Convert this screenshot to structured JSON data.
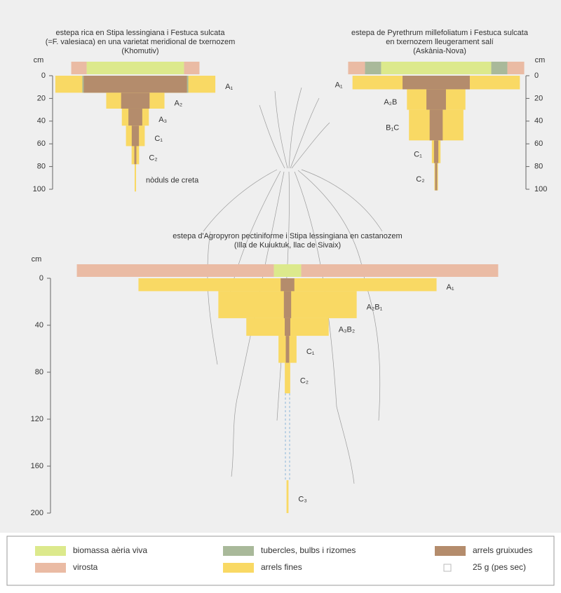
{
  "legend": {
    "live": {
      "label": "biomassa aèria viva",
      "color": "#dce98c"
    },
    "dead": {
      "label": "virosta",
      "color": "#eabba4"
    },
    "tubers": {
      "label": "tubercles, bulbs i rizomes",
      "color": "#a9b99a"
    },
    "fine": {
      "label": "arrels fines",
      "color": "#f9d964"
    },
    "thick": {
      "label": "arrels gruixudes",
      "color": "#b48c6c"
    },
    "scale": {
      "label": "25 g (pes sec)",
      "grams": 25
    }
  },
  "panels": [
    {
      "title": [
        "estepa rica en Stipa lessingiana i Festuca sulcata",
        "(=F. valesiaca) en una varietat meridional de txernozem",
        "(Khomutiv)"
      ],
      "axis_label": "cm",
      "ylim": [
        0,
        100
      ],
      "yticks": [
        0,
        20,
        40,
        60,
        80,
        100
      ],
      "aerial": {
        "live": 625,
        "dead": 198
      },
      "layers": [
        {
          "label": "A₁",
          "depth": [
            0,
            15
          ],
          "fine": 468,
          "thick": 894,
          "tubers": 24
        },
        {
          "label": "A₂",
          "depth": [
            15,
            29
          ],
          "fine": 241,
          "thick": 230
        },
        {
          "label": "A₃",
          "depth": [
            29,
            44
          ],
          "fine": 114,
          "thick": 120
        },
        {
          "label": "C₁",
          "depth": [
            44,
            62
          ],
          "fine": 120,
          "thick": 75
        },
        {
          "label": "C₂",
          "depth": [
            62,
            78
          ],
          "fine": 50,
          "thick": 19
        },
        {
          "label": "nòduls de creta",
          "depth": [
            78,
            102
          ],
          "fine": 20,
          "thick": 0
        }
      ]
    },
    {
      "title": [
        "estepa de Pyrethrum millefoliatum i Festuca sulcata",
        "en txernozem lleugerament salí",
        "(Askània-Nova)"
      ],
      "axis_label": "cm",
      "ylim": [
        0,
        100
      ],
      "yticks": [
        0,
        20,
        40,
        60,
        80,
        100
      ],
      "aerial": {
        "live": 707,
        "tubers": 207,
        "dead": 216
      },
      "layers": [
        {
          "label": "A₁",
          "depth": [
            0,
            12
          ],
          "fine": 694,
          "thick": 466
        },
        {
          "label": "A₂B",
          "depth": [
            12,
            30
          ],
          "fine": 405,
          "thick": 203
        },
        {
          "label": "B₁C",
          "depth": [
            30,
            57
          ],
          "fine": 645,
          "thick": 204
        },
        {
          "label": "C₁",
          "depth": [
            57,
            77
          ],
          "fine": 50,
          "thick": 50
        },
        {
          "label": "C₂",
          "depth": [
            77,
            101
          ],
          "fine": 20,
          "thick": 29
        }
      ]
    },
    {
      "title": [
        "estepa d'Agropyron pectiniforme i Stipa lessingiana en castanozem",
        "(Illa de Kuiuktuk, llac de Sivaix)"
      ],
      "axis_label": "cm",
      "ylim": [
        0,
        200
      ],
      "yticks": [
        0,
        40,
        80,
        120,
        160,
        200
      ],
      "aerial": {
        "live": 176,
        "dead": 2528
      },
      "layers": [
        {
          "label": "A₁",
          "depth": [
            0,
            11
          ],
          "fine": 1868,
          "thick": 90
        },
        {
          "label": "A₂B₁",
          "depth": [
            11,
            34
          ],
          "fine": 1800,
          "thick": 100
        },
        {
          "label": "A₃B₂",
          "depth": [
            34,
            49
          ],
          "fine": 688,
          "thick": 50
        },
        {
          "label": "C₁",
          "depth": [
            49,
            72
          ],
          "fine": 200,
          "thick": 48
        },
        {
          "label": "C₂",
          "depth": [
            72,
            98
          ],
          "fine": 84,
          "thick": 0
        },
        {
          "label": "C₃",
          "depth": [
            172,
            200
          ],
          "fine": 33,
          "thick": 0
        }
      ]
    }
  ]
}
